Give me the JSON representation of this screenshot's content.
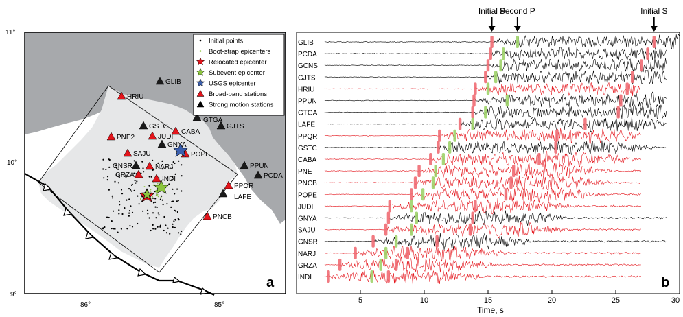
{
  "map": {
    "panel_label": "a",
    "lat_labels": [
      "11°",
      "10°",
      "9°"
    ],
    "lon_labels": [
      "86°",
      "85°"
    ],
    "legend": [
      {
        "label": "Initial points",
        "symbol": "dot",
        "color": "#000000"
      },
      {
        "label": "Boot-strap epicenters",
        "symbol": "dot",
        "color": "#8cc63f"
      },
      {
        "label": "Relocated epicenter",
        "symbol": "star",
        "color": "#e4141b"
      },
      {
        "label": "Subevent epicenter",
        "symbol": "star",
        "color": "#8cc63f"
      },
      {
        "label": "USGS epicenter",
        "symbol": "star",
        "color": "#3b5fae"
      },
      {
        "label": "Broad-band stations",
        "symbol": "triangle",
        "color": "#e4141b"
      },
      {
        "label": "Strong motion stations",
        "symbol": "triangle",
        "color": "#000000"
      }
    ],
    "stations": [
      {
        "name": "GLIB",
        "type": "strong"
      },
      {
        "name": "HRIU",
        "type": "broadband"
      },
      {
        "name": "GTGA",
        "type": "strong"
      },
      {
        "name": "GJTS",
        "type": "strong"
      },
      {
        "name": "GSTC",
        "type": "strong"
      },
      {
        "name": "CABA",
        "type": "broadband"
      },
      {
        "name": "PNE2",
        "type": "broadband"
      },
      {
        "name": "JUDI",
        "type": "broadband"
      },
      {
        "name": "GNYA",
        "type": "strong"
      },
      {
        "name": "POPE",
        "type": "broadband"
      },
      {
        "name": "SAJU",
        "type": "broadband"
      },
      {
        "name": "GNSR",
        "type": "strong"
      },
      {
        "name": "NARJ",
        "type": "broadband"
      },
      {
        "name": "GRZA",
        "type": "broadband"
      },
      {
        "name": "INDI",
        "type": "broadband"
      },
      {
        "name": "PPUN",
        "type": "strong"
      },
      {
        "name": "PCDA",
        "type": "strong"
      },
      {
        "name": "PPQR",
        "type": "broadband"
      },
      {
        "name": "LAFE",
        "type": "strong"
      },
      {
        "name": "PNCB",
        "type": "broadband"
      }
    ]
  },
  "seismograms": {
    "panel_label": "b",
    "xlabel": "Time, s",
    "xlim": [
      0,
      30
    ],
    "xticks": [
      5,
      10,
      15,
      20,
      25,
      30
    ],
    "phase_labels": [
      {
        "label": "Initial P",
        "time": 15.3
      },
      {
        "label": "Second P",
        "time": 17.3
      },
      {
        "label": "Initial S",
        "time": 28.0
      }
    ],
    "traces": [
      {
        "name": "GLIB",
        "color": "#000000",
        "p": 15.3,
        "p2": 17.3,
        "s": 28.0
      },
      {
        "name": "PCDA",
        "color": "#000000",
        "p": 15.2,
        "p2": 16.2,
        "s": 27.5
      },
      {
        "name": "GCNS",
        "color": "#000000",
        "p": 15.0,
        "p2": 16.0,
        "s": 27.0
      },
      {
        "name": "GJTS",
        "color": "#000000",
        "p": 14.8,
        "p2": 15.6,
        "s": 26.3
      },
      {
        "name": "HRIU",
        "color": "#e4141b",
        "p": 14.0,
        "p2": 15.0,
        "s": 25.9
      },
      {
        "name": "PPUN",
        "color": "#000000",
        "p": 13.9,
        "p2": 16.5,
        "s": 25.4
      },
      {
        "name": "GTGA",
        "color": "#000000",
        "p": 13.8,
        "p2": 14.8,
        "s": 25.2
      },
      {
        "name": "LAFE",
        "color": "#000000",
        "p": 12.8,
        "p2": 13.8,
        "s": 22.6
      },
      {
        "name": "PPQR",
        "color": "#e4141b",
        "p": 11.2,
        "p2": 12.4,
        "s": 20.4
      },
      {
        "name": "GSTC",
        "color": "#000000",
        "p": 11.1,
        "p2": 12.0,
        "s": 20.3
      },
      {
        "name": "CABA",
        "color": "#e4141b",
        "p": 10.5,
        "p2": 11.5,
        "s": 19.0
      },
      {
        "name": "PNE",
        "color": "#e4141b",
        "p": 9.6,
        "p2": 10.9,
        "s": 17.0
      },
      {
        "name": "PNCB",
        "color": "#e4141b",
        "p": 9.3,
        "p2": 10.7,
        "s": 16.8
      },
      {
        "name": "POPE",
        "color": "#e4141b",
        "p": 9.0,
        "p2": 9.9,
        "s": 16.4
      },
      {
        "name": "JUDI",
        "color": "#e4141b",
        "p": 7.3,
        "p2": 9.0,
        "s": 14.0
      },
      {
        "name": "GNYA",
        "color": "#000000",
        "p": 7.2,
        "p2": 9.4,
        "s": 13.8
      },
      {
        "name": "SAJU",
        "color": "#e4141b",
        "p": 7.0,
        "p2": 9.0,
        "s": 13.6
      },
      {
        "name": "GNSR",
        "color": "#000000",
        "p": 6.0,
        "p2": 7.8,
        "s": 11.0
      },
      {
        "name": "NARJ",
        "color": "#e4141b",
        "p": 4.6,
        "p2": 7.0,
        "s": 8.7
      },
      {
        "name": "GRZA",
        "color": "#e4141b",
        "p": 3.4,
        "p2": 6.6,
        "s": 7.8
      },
      {
        "name": "INDI",
        "color": "#e4141b",
        "p": 2.5,
        "p2": 5.9,
        "s": 7.2
      }
    ]
  }
}
